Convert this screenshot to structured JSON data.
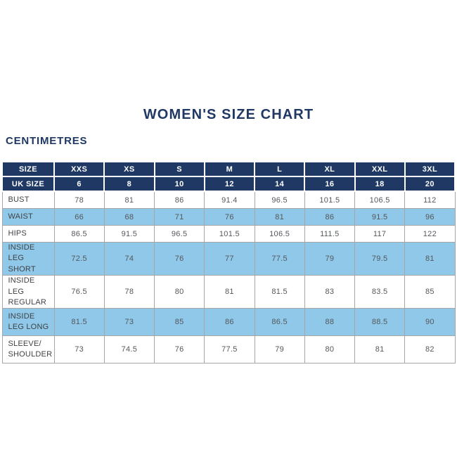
{
  "colors": {
    "navy": "#1f3864",
    "light_blue": "#8fc8e8",
    "grid": "#a6a6a6",
    "value_text": "#55575b",
    "label_text": "#404245"
  },
  "chart_data": {
    "type": "table",
    "title": "WOMEN'S SIZE CHART",
    "unit_label": "CENTIMETRES",
    "header_rows": [
      {
        "label": "SIZE",
        "values": [
          "XXS",
          "XS",
          "S",
          "M",
          "L",
          "XL",
          "XXL",
          "3XL"
        ]
      },
      {
        "label": "UK SIZE",
        "values": [
          "6",
          "8",
          "10",
          "12",
          "14",
          "16",
          "18",
          "20"
        ]
      }
    ],
    "rows": [
      {
        "label": "BUST",
        "values": [
          "78",
          "81",
          "86",
          "91.4",
          "96.5",
          "101.5",
          "106.5",
          "112"
        ]
      },
      {
        "label": "WAIST",
        "values": [
          "66",
          "68",
          "71",
          "76",
          "81",
          "86",
          "91.5",
          "96"
        ]
      },
      {
        "label": "HIPS",
        "values": [
          "86.5",
          "91.5",
          "96.5",
          "101.5",
          "106.5",
          "111.5",
          "117",
          "122"
        ]
      },
      {
        "label": "INSIDE LEG SHORT",
        "values": [
          "72.5",
          "74",
          "76",
          "77",
          "77.5",
          "79",
          "79.5",
          "81"
        ]
      },
      {
        "label": "INSIDE LEG REGULAR",
        "values": [
          "76.5",
          "78",
          "80",
          "81",
          "81.5",
          "83",
          "83.5",
          "85"
        ]
      },
      {
        "label": "INSIDE LEG LONG",
        "values": [
          "81.5",
          "73",
          "85",
          "86",
          "86.5",
          "88",
          "88.5",
          "90"
        ]
      },
      {
        "label": "SLEEVE/SHOULDER",
        "values": [
          "73",
          "74.5",
          "76",
          "77.5",
          "79",
          "80",
          "81",
          "82"
        ]
      }
    ]
  }
}
